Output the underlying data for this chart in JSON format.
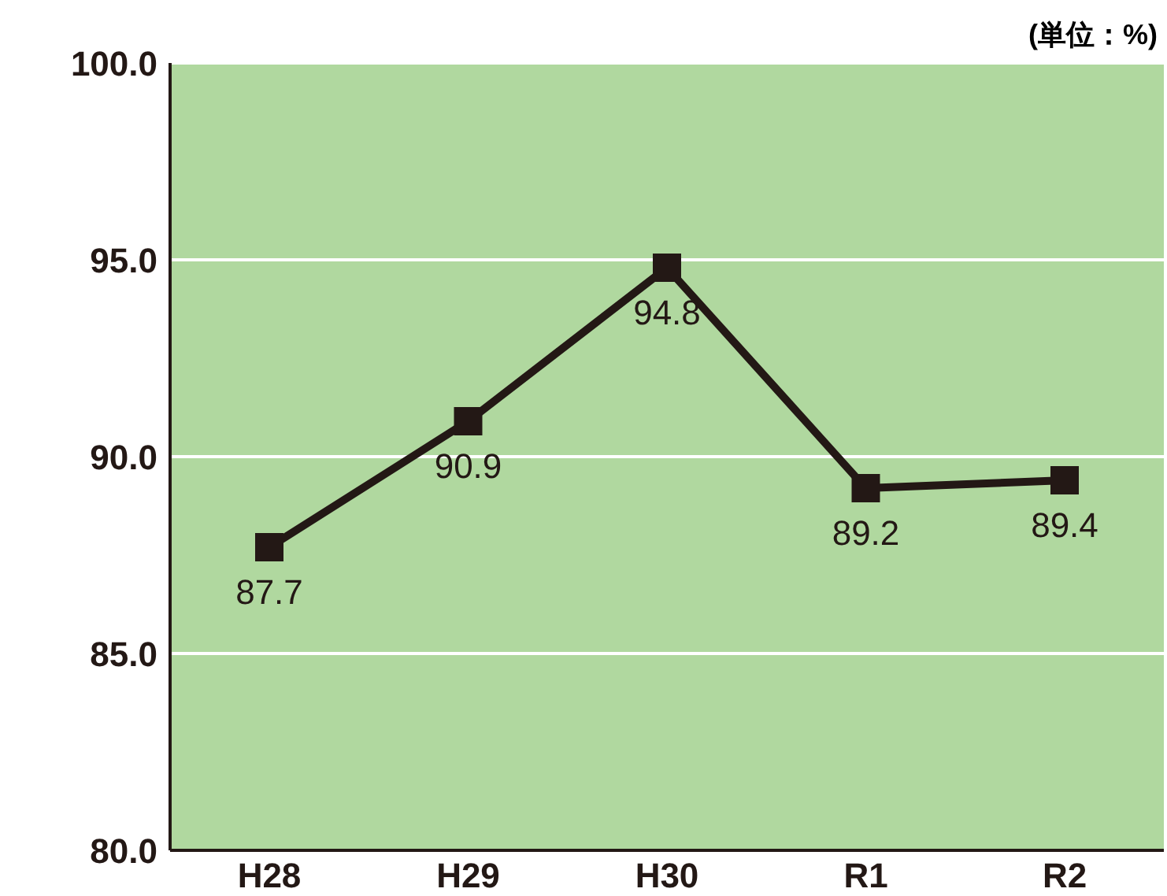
{
  "chart_data": {
    "type": "line",
    "ylabel": "(単位：%)",
    "categories": [
      "H28",
      "H29",
      "H30",
      "R1",
      "R2"
    ],
    "series": [
      {
        "color": "#231815",
        "values": [
          87.7,
          90.9,
          94.8,
          89.2,
          89.4
        ]
      }
    ],
    "ylim": [
      80,
      100
    ],
    "yticks": [
      {
        "value": 80,
        "label": "80.0"
      },
      {
        "value": 85,
        "label": "85.0"
      },
      {
        "value": 90,
        "label": "90.0"
      },
      {
        "value": 95,
        "label": "95.0"
      },
      {
        "value": 100,
        "label": "100.0"
      }
    ],
    "grid": "y",
    "marker": "square",
    "line_style": "solid",
    "data_labels": true
  }
}
